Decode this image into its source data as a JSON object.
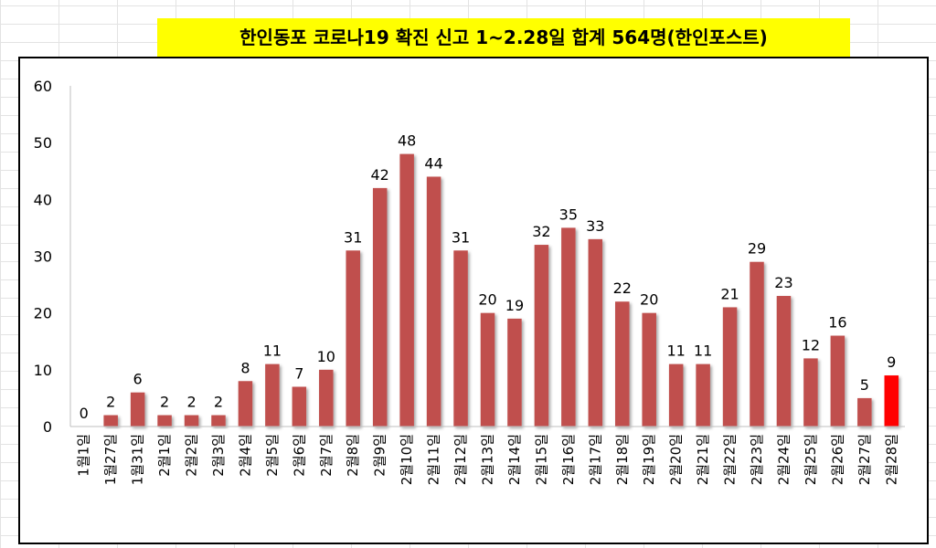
{
  "chart_data": {
    "type": "bar",
    "title": "한인동포 코로나19 확진 신고 1~2.28일 합계 564명(한인포스트)",
    "xlabel": "",
    "ylabel": "",
    "ylim": [
      0,
      60
    ],
    "yticks": [
      0,
      10,
      20,
      30,
      40,
      50,
      60
    ],
    "grid": false,
    "categories": [
      "1월1일",
      "1월27일",
      "1월31일",
      "2월1일",
      "2월2일",
      "2월3일",
      "2월4일",
      "2월5일",
      "2월6일",
      "2월7일",
      "2월8일",
      "2월9일",
      "2월10일",
      "2월11일",
      "2월12일",
      "2월13일",
      "2월14일",
      "2월15일",
      "2월16일",
      "2월17일",
      "2월18일",
      "2월19일",
      "2월20일",
      "2월21일",
      "2월22일",
      "2월23일",
      "2월24일",
      "2월25일",
      "2월26일",
      "2월27일",
      "2월28일"
    ],
    "values": [
      0,
      2,
      6,
      2,
      2,
      2,
      8,
      11,
      7,
      10,
      31,
      42,
      48,
      44,
      31,
      20,
      19,
      32,
      35,
      33,
      22,
      20,
      11,
      11,
      21,
      29,
      23,
      12,
      16,
      5,
      9
    ],
    "colors": {
      "bar": "#c0504d",
      "highlight": "#ff0000",
      "title_bg": "#ffff00"
    },
    "highlight_index": 30
  }
}
